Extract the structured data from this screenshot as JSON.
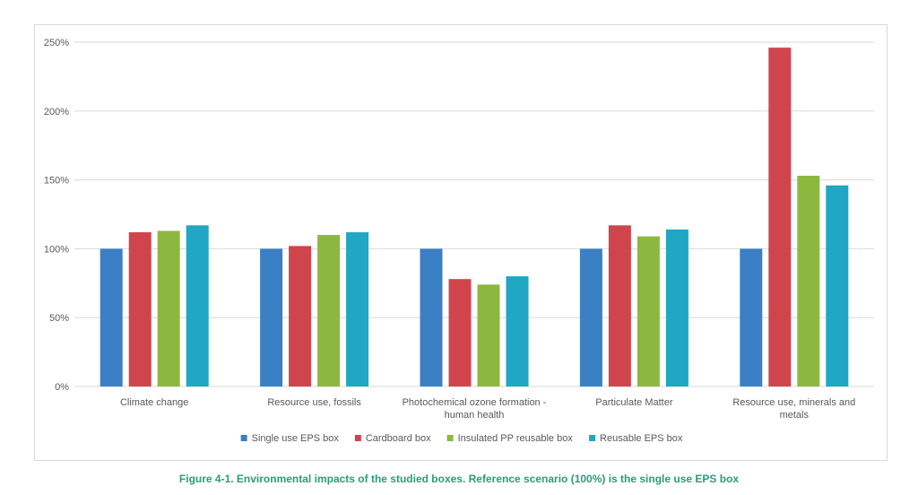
{
  "caption": "Figure 4-1. Environmental impacts of the studied boxes. Reference scenario (100%) is the single use EPS box",
  "chart_data": {
    "type": "bar",
    "title": "",
    "xlabel": "",
    "ylabel": "",
    "ylim": [
      0,
      250
    ],
    "yticks": [
      0,
      50,
      100,
      150,
      200,
      250
    ],
    "ytick_labels": [
      "0%",
      "50%",
      "100%",
      "150%",
      "200%",
      "250%"
    ],
    "grid": true,
    "legend_position": "bottom",
    "categories": [
      [
        "Climate change"
      ],
      [
        "Resource use, fossils"
      ],
      [
        "Photochemical ozone formation -",
        "human health"
      ],
      [
        "Particulate Matter"
      ],
      [
        "Resource use, minerals and",
        "metals"
      ]
    ],
    "series": [
      {
        "name": "Single use EPS box",
        "color": "#3b7fc4",
        "values": [
          100,
          100,
          100,
          100,
          100
        ]
      },
      {
        "name": "Cardboard box",
        "color": "#d0454c",
        "values": [
          112,
          102,
          78,
          117,
          246
        ]
      },
      {
        "name": "Insulated PP reusable box",
        "color": "#8db83f",
        "values": [
          113,
          110,
          74,
          109,
          153
        ]
      },
      {
        "name": "Reusable EPS box",
        "color": "#1fa7c4",
        "values": [
          117,
          112,
          80,
          114,
          146
        ]
      }
    ]
  }
}
